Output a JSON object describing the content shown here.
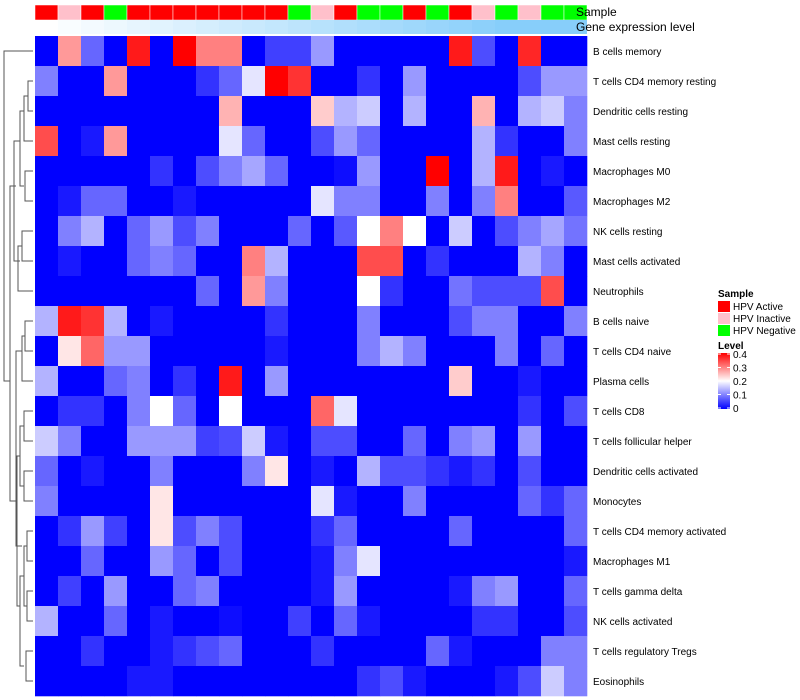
{
  "chart_data": {
    "type": "heatmap",
    "title": "",
    "annotation_labels": {
      "sample": "Sample",
      "gene": "Gene expression level"
    },
    "rows": [
      "B cells memory",
      "T cells CD4 memory resting",
      "Dendritic cells resting",
      "Mast cells resting",
      "Macrophages M0",
      "Macrophages M2",
      "NK cells resting",
      "Mast cells activated",
      "Neutrophils",
      "B cells naive",
      "T cells CD4 naive",
      "Plasma cells",
      "T cells CD8",
      "T cells follicular helper",
      "Dendritic cells activated",
      "Monocytes",
      "T cells CD4 memory activated",
      "Macrophages M1",
      "T cells gamma delta",
      "NK cells activated",
      "T cells regulatory  Tregs",
      "Eosinophils"
    ],
    "sample_groups": [
      "Active",
      "Inactive",
      "Active",
      "Negative",
      "Active",
      "Active",
      "Active",
      "Active",
      "Active",
      "Active",
      "Active",
      "Negative",
      "Inactive",
      "Active",
      "Negative",
      "Negative",
      "Active",
      "Negative",
      "Active",
      "Inactive",
      "Negative",
      "Inactive",
      "Negative",
      "Negative"
    ],
    "gene_expression": [
      0.0,
      0.05,
      0.1,
      0.15,
      0.2,
      0.25,
      0.3,
      0.35,
      0.4,
      0.45,
      0.5,
      0.55,
      0.6,
      0.65,
      0.7,
      0.75,
      0.8,
      0.85,
      0.9,
      0.95,
      1.0,
      1.0,
      1.0,
      1.0
    ],
    "values": [
      [
        0,
        0.28,
        0.08,
        0,
        0.38,
        0,
        0.4,
        0.3,
        0.3,
        0,
        0.05,
        0.05,
        0.12,
        0,
        0,
        0,
        0,
        0,
        0.38,
        0.06,
        0,
        0.37,
        0,
        0
      ],
      [
        0.1,
        0,
        0,
        0.28,
        0,
        0,
        0,
        0.04,
        0.08,
        0.18,
        0.4,
        0.36,
        0,
        0,
        0.04,
        0,
        0.12,
        0,
        0,
        0,
        0,
        0.06,
        0.12,
        0.12
      ],
      [
        0,
        0,
        0,
        0,
        0,
        0,
        0,
        0,
        0.26,
        0,
        0,
        0,
        0.24,
        0.14,
        0.16,
        0,
        0.14,
        0,
        0,
        0.26,
        0,
        0.14,
        0.16,
        0.1
      ],
      [
        0.34,
        0,
        0.02,
        0.28,
        0,
        0,
        0,
        0,
        0.18,
        0.08,
        0,
        0,
        0.06,
        0.12,
        0.08,
        0,
        0,
        0,
        0,
        0.14,
        0.04,
        0,
        0,
        0.1
      ],
      [
        0,
        0,
        0,
        0,
        0,
        0.04,
        0,
        0.06,
        0.1,
        0.13,
        0.08,
        0,
        0,
        0.01,
        0.12,
        0,
        0,
        0.4,
        0,
        0.14,
        0.38,
        0,
        0.02,
        0
      ],
      [
        0,
        0.02,
        0.08,
        0.08,
        0,
        0,
        0.02,
        0,
        0,
        0,
        0,
        0,
        0.18,
        0.1,
        0.1,
        0,
        0,
        0.1,
        0,
        0.1,
        0.3,
        0,
        0,
        0.07
      ],
      [
        0,
        0.1,
        0.14,
        0,
        0.08,
        0.12,
        0.06,
        0.1,
        0,
        0,
        0,
        0.08,
        0,
        0.07,
        0.2,
        0.3,
        0.2,
        0,
        0.16,
        0,
        0.06,
        0.1,
        0.13,
        0.09
      ],
      [
        0,
        0.02,
        0,
        0,
        0.08,
        0.1,
        0.08,
        0,
        0,
        0.3,
        0.14,
        0,
        0,
        0,
        0.34,
        0.34,
        0,
        0.04,
        0,
        0,
        0,
        0.14,
        0.1,
        0
      ],
      [
        0,
        0,
        0,
        0,
        0,
        0,
        0,
        0.08,
        0,
        0.28,
        0.1,
        0,
        0,
        0,
        0.2,
        0.04,
        0,
        0,
        0.09,
        0.06,
        0.06,
        0.06,
        0.34,
        0
      ],
      [
        0.14,
        0.38,
        0.36,
        0.14,
        0,
        0.02,
        0,
        0,
        0,
        0,
        0.04,
        0,
        0,
        0,
        0.1,
        0,
        0,
        0,
        0.06,
        0.1,
        0.1,
        0,
        0,
        0.1
      ],
      [
        0,
        0.22,
        0.32,
        0.12,
        0.12,
        0,
        0,
        0,
        0,
        0,
        0.02,
        0,
        0,
        0,
        0.1,
        0.14,
        0.1,
        0,
        0,
        0,
        0.1,
        0,
        0.08,
        0
      ],
      [
        0.14,
        0,
        0,
        0.08,
        0.1,
        0,
        0.04,
        0,
        0.38,
        0,
        0.12,
        0,
        0,
        0,
        0,
        0,
        0,
        0,
        0.24,
        0,
        0,
        0.02,
        0,
        0
      ],
      [
        0,
        0.04,
        0.04,
        0,
        0.1,
        0.2,
        0.08,
        0,
        0.2,
        0,
        0,
        0,
        0.32,
        0.18,
        0,
        0,
        0,
        0,
        0,
        0,
        0,
        0.04,
        0,
        0.06
      ],
      [
        0.16,
        0.1,
        0,
        0,
        0.12,
        0.12,
        0.12,
        0.05,
        0.06,
        0.16,
        0.02,
        0,
        0.06,
        0.06,
        0,
        0,
        0.08,
        0,
        0.1,
        0.12,
        0,
        0.12,
        0,
        0
      ],
      [
        0.08,
        0,
        0.02,
        0,
        0,
        0.1,
        0,
        0,
        0,
        0.1,
        0.22,
        0,
        0.02,
        0,
        0.14,
        0.06,
        0.06,
        0.04,
        0.02,
        0.04,
        0,
        0.06,
        0,
        0
      ],
      [
        0.1,
        0,
        0,
        0,
        0,
        0.22,
        0,
        0,
        0,
        0,
        0,
        0,
        0.18,
        0.02,
        0,
        0,
        0.1,
        0,
        0,
        0,
        0,
        0.08,
        0.04,
        0.08
      ],
      [
        0,
        0.04,
        0.12,
        0.05,
        0,
        0.22,
        0.06,
        0.1,
        0.06,
        0,
        0,
        0,
        0.04,
        0.08,
        0,
        0,
        0,
        0,
        0.08,
        0,
        0,
        0,
        0,
        0.08
      ],
      [
        0,
        0,
        0.08,
        0,
        0,
        0.12,
        0.08,
        0,
        0.06,
        0,
        0,
        0,
        0.02,
        0.1,
        0.18,
        0,
        0,
        0,
        0,
        0,
        0,
        0,
        0,
        0.02
      ],
      [
        0,
        0.05,
        0,
        0.12,
        0,
        0,
        0.08,
        0.1,
        0,
        0,
        0,
        0,
        0.02,
        0.12,
        0,
        0,
        0,
        0,
        0.02,
        0.1,
        0.12,
        0,
        0,
        0.08
      ],
      [
        0.14,
        0,
        0,
        0.08,
        0,
        0.02,
        0,
        0,
        0.01,
        0,
        0,
        0.05,
        0,
        0.08,
        0.02,
        0,
        0,
        0,
        0,
        0.04,
        0.04,
        0,
        0,
        0.06
      ],
      [
        0,
        0,
        0.04,
        0,
        0,
        0.02,
        0.04,
        0.06,
        0.08,
        0,
        0,
        0,
        0.04,
        0,
        0,
        0,
        0,
        0.08,
        0.02,
        0,
        0,
        0,
        0.1,
        0.1
      ],
      [
        0,
        0,
        0,
        0,
        0.02,
        0.02,
        0,
        0,
        0,
        0,
        0,
        0,
        0,
        0,
        0.04,
        0.06,
        0.02,
        0,
        0,
        0,
        0.02,
        0.06,
        0.16,
        0.1
      ]
    ],
    "legend_sample": {
      "title": "Sample",
      "entries": [
        {
          "label": "HPV Active",
          "color": "#ff0000"
        },
        {
          "label": "HPV Inactive",
          "color": "#ffc0cb"
        },
        {
          "label": "HPV Negative",
          "color": "#00ff00"
        }
      ]
    },
    "legend_level": {
      "title": "Level",
      "ticks": [
        {
          "value": 0.4,
          "label": "0.4"
        },
        {
          "value": 0.3,
          "label": "0.3"
        },
        {
          "value": 0.2,
          "label": "0.2"
        },
        {
          "value": 0.1,
          "label": "0.1"
        },
        {
          "value": 0.0,
          "label": "0"
        }
      ],
      "range": [
        0,
        0.4
      ]
    },
    "colors": {
      "low": "#0000ff",
      "mid": "#ffffff",
      "high": "#ff0000",
      "gene_low": "#ffffff",
      "gene_high": "#87cefa"
    }
  }
}
